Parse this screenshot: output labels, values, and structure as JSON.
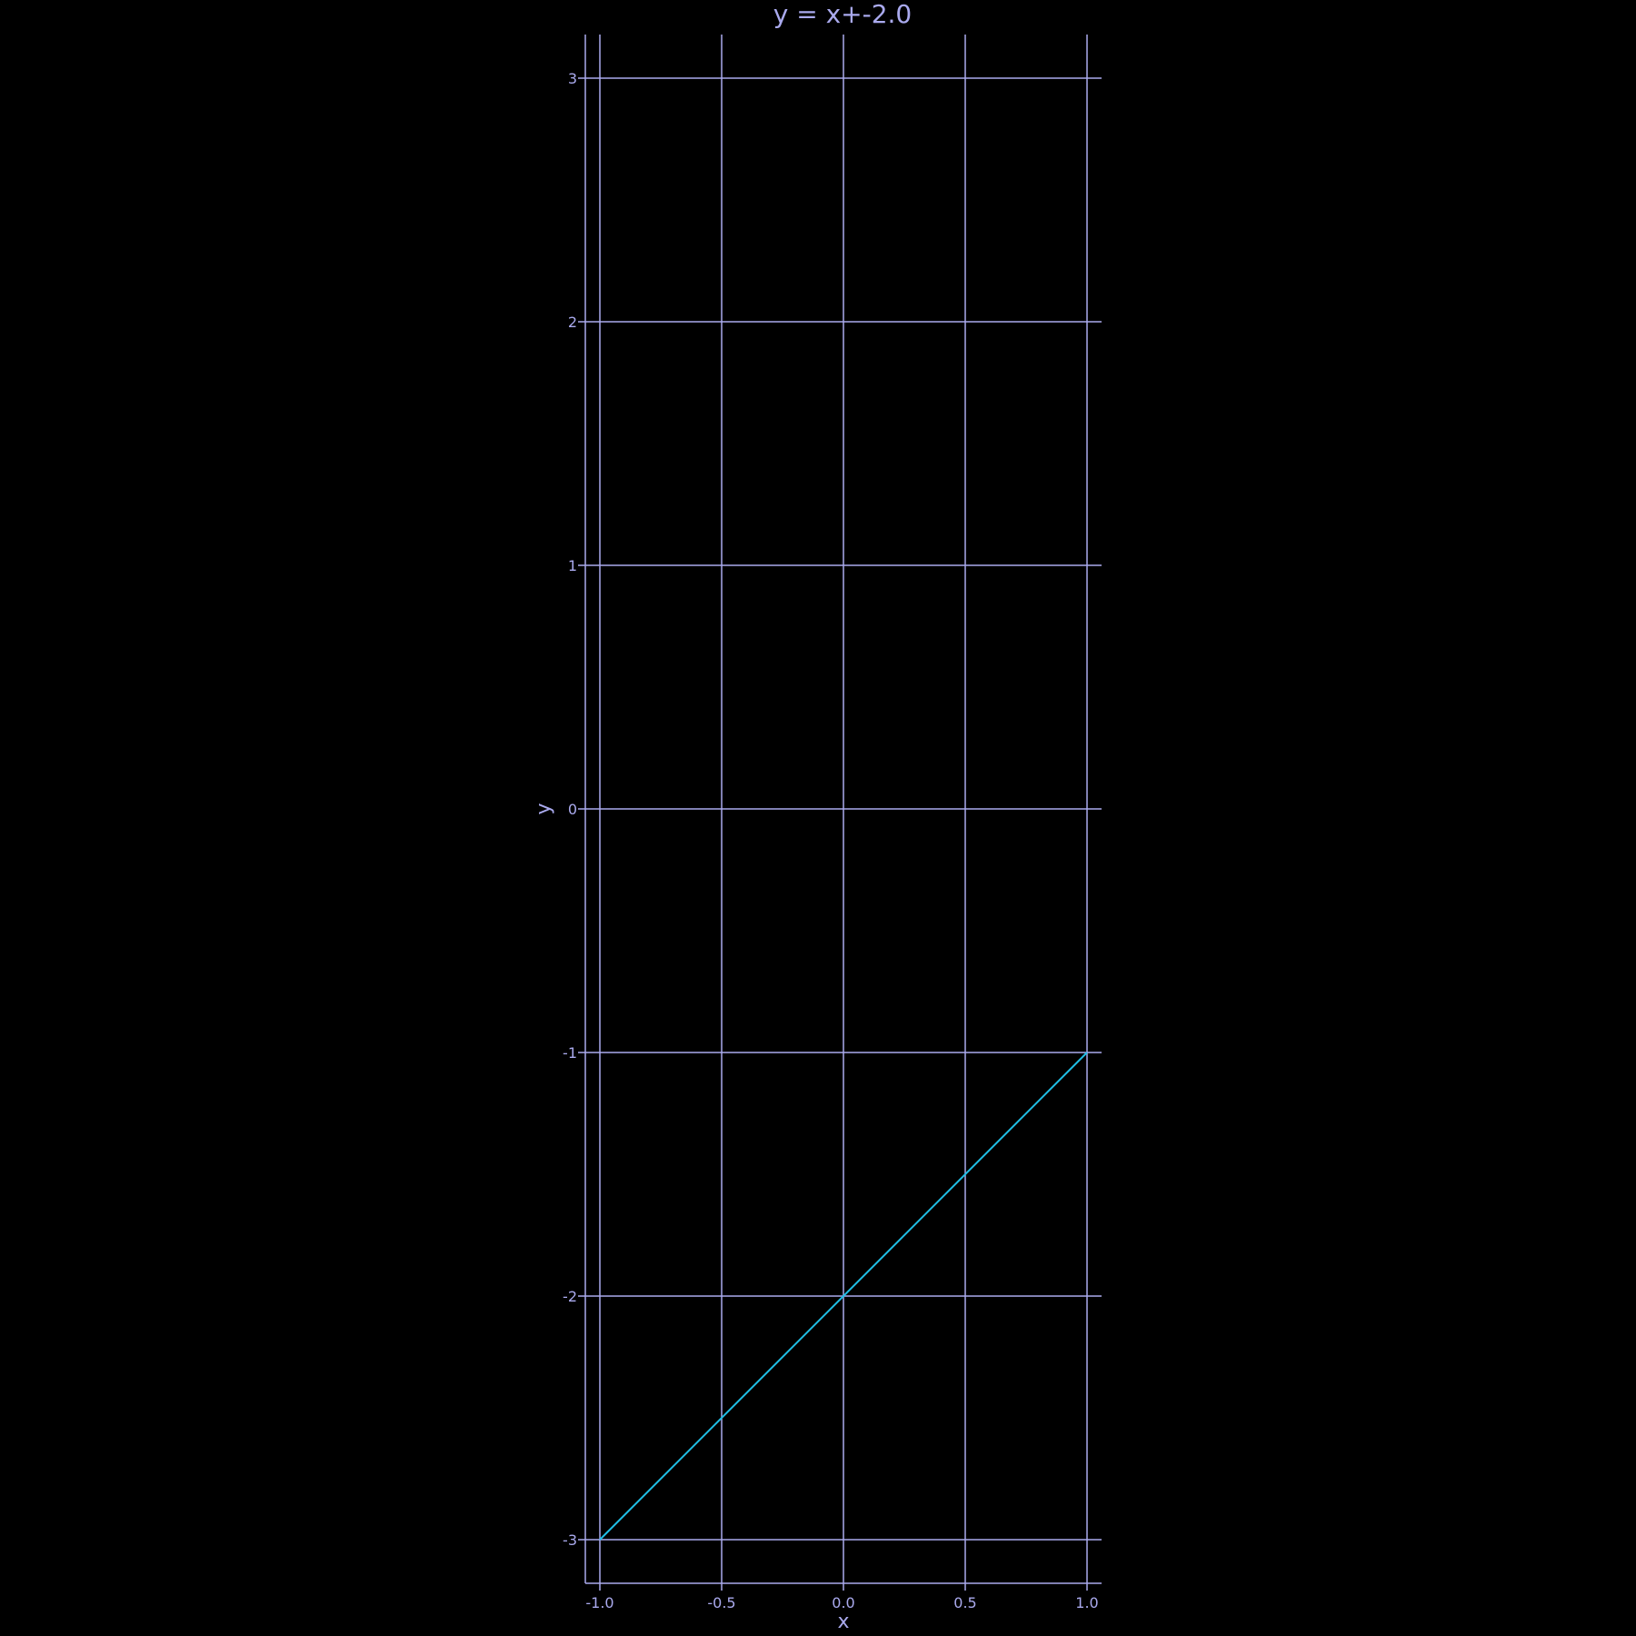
{
  "chart_data": {
    "type": "line",
    "title": "y = x+-2.0",
    "xlabel": "x",
    "ylabel": "y",
    "xlim": [
      -1.0,
      1.0
    ],
    "ylim": [
      -3,
      3
    ],
    "x_ticks": [
      -1.0,
      -0.5,
      0.0,
      0.5,
      1.0
    ],
    "x_tick_labels": [
      "-1.0",
      "-0.5",
      "0.0",
      "0.5",
      "1.0"
    ],
    "y_ticks": [
      3,
      2,
      1,
      0,
      -1,
      -2,
      -3
    ],
    "y_tick_labels": [
      "3",
      "2",
      "1",
      "0",
      "-1",
      "-2",
      "-3"
    ],
    "grid": true,
    "series": [
      {
        "x": [
          -1.0,
          1.0
        ],
        "y": [
          -3.0,
          -1.0
        ]
      }
    ]
  },
  "colors": {
    "background": "#000000",
    "axis": "#aaaaee",
    "grid": "#aaaaee",
    "text": "#aaaaee",
    "line": "#1fbfe6"
  }
}
